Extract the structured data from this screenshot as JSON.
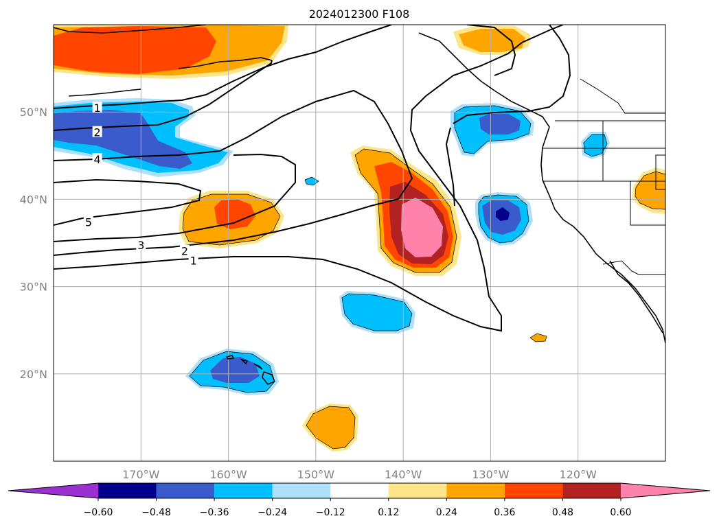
{
  "title": "2024012300 F108",
  "chart_data": {
    "type": "map-contour",
    "title": "2024012300 F108",
    "extent": {
      "lon": [
        -180,
        -110
      ],
      "lat": [
        10,
        60
      ]
    },
    "x_ticks": [
      {
        "lon": -170,
        "label": "170°W"
      },
      {
        "lon": -160,
        "label": "160°W"
      },
      {
        "lon": -150,
        "label": "150°W"
      },
      {
        "lon": -140,
        "label": "140°W"
      },
      {
        "lon": -130,
        "label": "130°W"
      },
      {
        "lon": -120,
        "label": "120°W"
      }
    ],
    "y_ticks": [
      {
        "lat": 20,
        "label": "20°N"
      },
      {
        "lat": 30,
        "label": "30°N"
      },
      {
        "lat": 40,
        "label": "40°N"
      },
      {
        "lat": 50,
        "label": "50°N"
      }
    ],
    "grid": true,
    "colorbar": {
      "orientation": "horizontal",
      "extend": "both",
      "levels": [
        -0.6,
        -0.48,
        -0.36,
        -0.24,
        -0.12,
        0.12,
        0.24,
        0.36,
        0.48,
        0.6
      ],
      "tick_labels": [
        "−0.60",
        "−0.48",
        "−0.36",
        "−0.24",
        "−0.12",
        "0.12",
        "0.24",
        "0.36",
        "0.48",
        "0.60"
      ],
      "colors": [
        "#9b30d0",
        "#00008b",
        "#3a5bcc",
        "#00bfff",
        "#ade0fa",
        "#ffffff",
        "#fde68a",
        "#ffa500",
        "#ff4500",
        "#b22222",
        "#ff82ab"
      ]
    },
    "contour_labels": [
      {
        "text": "1",
        "lon": -175,
        "lat": 50.4
      },
      {
        "text": "2",
        "lon": -175,
        "lat": 47.6
      },
      {
        "text": "4",
        "lon": -175,
        "lat": 44.5
      },
      {
        "text": "5",
        "lon": -176,
        "lat": 37.3
      },
      {
        "text": "3",
        "lon": -170,
        "lat": 34.7
      },
      {
        "text": "2",
        "lon": -165,
        "lat": 34.0
      },
      {
        "text": "1",
        "lon": -164,
        "lat": 32.9
      }
    ],
    "shaded_regions": [
      {
        "name": "gulf-of-alaska-positive",
        "center": [
          -166,
          56
        ],
        "peak": 0.36
      },
      {
        "name": "northeast-pacific-positive",
        "center": [
          -139,
          38
        ],
        "peak": 0.6
      },
      {
        "name": "central-pacific-positive",
        "center": [
          -160,
          38.5
        ],
        "peak": 0.36
      },
      {
        "name": "bc-coast-positive",
        "center": [
          -131,
          58
        ],
        "peak": 0.24
      },
      {
        "name": "california-inland-positive",
        "center": [
          -113,
          40
        ],
        "peak": 0.24
      },
      {
        "name": "subtropical-positive",
        "center": [
          -149,
          14
        ],
        "peak": 0.24
      },
      {
        "name": "aleutian-negative",
        "center": [
          -170,
          48
        ],
        "peak": -0.36
      },
      {
        "name": "offshore-negative",
        "center": [
          -129,
          38.5
        ],
        "peak": -0.6
      },
      {
        "name": "northwest-negative",
        "center": [
          -130,
          48.5
        ],
        "peak": -0.36
      },
      {
        "name": "hawaii-negative",
        "center": [
          -161,
          20
        ],
        "peak": -0.36
      },
      {
        "name": "east-central-negative",
        "center": [
          -143,
          27
        ],
        "peak": -0.24
      },
      {
        "name": "oregon-negative",
        "center": [
          -118,
          46
        ],
        "peak": -0.24
      }
    ]
  }
}
